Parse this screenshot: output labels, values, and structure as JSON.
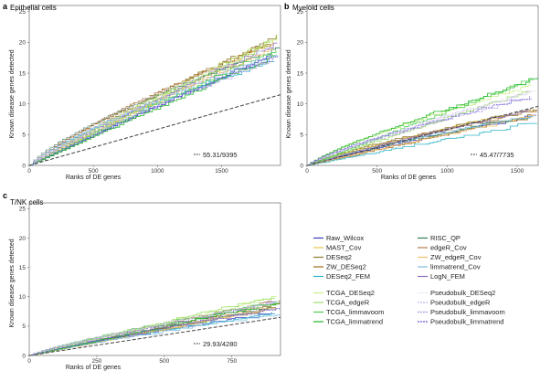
{
  "chart_data": [
    {
      "letter": "a",
      "type": "line",
      "title": "Epithelial cells",
      "xlabel": "Ranks of DE genes",
      "ylabel": "Known disease genes detected",
      "xlim": [
        0,
        1960
      ],
      "ylim": [
        0,
        26
      ],
      "xticks": [
        "0",
        "500",
        "1000",
        "1500"
      ],
      "xtick_values": [
        0,
        500,
        1000,
        1500
      ],
      "yticks": [
        "0",
        "5",
        "10",
        "15",
        "20",
        "25"
      ],
      "ytick_values": [
        0,
        5,
        10,
        15,
        20,
        25
      ],
      "annotation": "55.31/9395",
      "expected_end": 11.5
    },
    {
      "letter": "b",
      "type": "line",
      "title": "Myeloid cells",
      "xlabel": "Ranks of DE genes",
      "ylabel": "Known disease genes detected",
      "xlim": [
        0,
        1650
      ],
      "ylim": [
        0,
        26
      ],
      "xticks": [
        "0",
        "500",
        "1000",
        "1500"
      ],
      "xtick_values": [
        0,
        500,
        1000,
        1500
      ],
      "yticks": [
        "0",
        "5",
        "10",
        "15",
        "20",
        "25"
      ],
      "ytick_values": [
        0,
        5,
        10,
        15,
        20,
        25
      ],
      "annotation": "45.47/7735",
      "expected_end": 9.6
    },
    {
      "letter": "c",
      "type": "line",
      "title": "T/NK cells",
      "xlabel": "Ranks of DE genes",
      "ylabel": "Known disease genes detected",
      "xlim": [
        0,
        930
      ],
      "ylim": [
        0,
        26
      ],
      "xticks": [
        "0",
        "250",
        "500",
        "750"
      ],
      "xtick_values": [
        0,
        250,
        500,
        750
      ],
      "yticks": [
        "0",
        "5",
        "10",
        "15",
        "20",
        "25"
      ],
      "ytick_values": [
        0,
        5,
        10,
        15,
        20,
        25
      ],
      "annotation": "29.93/4280",
      "expected_end": 6.5
    }
  ],
  "methods": [
    {
      "name": "Raw_Wilcox",
      "color": "#3b3bbf",
      "dash": "",
      "end": [
        18,
        8,
        7
      ]
    },
    {
      "name": "MAST_Cov",
      "color": "#e8c84a",
      "dash": "",
      "end": [
        20,
        9,
        8
      ]
    },
    {
      "name": "DESeq2",
      "color": "#8a7a2a",
      "dash": "",
      "end": [
        21,
        9,
        9
      ]
    },
    {
      "name": "ZW_DESeq2",
      "color": "#a06c1c",
      "dash": "",
      "end": [
        20,
        8,
        8
      ]
    },
    {
      "name": "DESeq2_FEM",
      "color": "#2eb3c9",
      "dash": "",
      "end": [
        17,
        7,
        7
      ]
    },
    {
      "name": "RISC_QP",
      "color": "#2f7d4f",
      "dash": "",
      "end": [
        19,
        8,
        8
      ]
    },
    {
      "name": "edgeR_Cov",
      "color": "#b07d4a",
      "dash": "",
      "end": [
        20,
        9,
        9
      ]
    },
    {
      "name": "ZW_edgeR_Cov",
      "color": "#f0c070",
      "dash": "",
      "end": [
        19,
        8,
        8
      ]
    },
    {
      "name": "limmatrend_Cov",
      "color": "#7fbfdf",
      "dash": "",
      "end": [
        18,
        8,
        7
      ]
    },
    {
      "name": "LogN_FEM",
      "color": "#8a6bbf",
      "dash": "",
      "end": [
        20,
        9,
        9
      ]
    },
    {
      "name": "TCGA_DESeq2",
      "color": "#c9ef8a",
      "dash": "",
      "end": [
        21,
        13,
        10
      ]
    },
    {
      "name": "TCGA_edgeR",
      "color": "#9ee06a",
      "dash": "",
      "end": [
        20,
        12,
        10
      ]
    },
    {
      "name": "TCGA_limmavoom",
      "color": "#4ccf4c",
      "dash": "",
      "end": [
        19,
        14,
        9
      ]
    },
    {
      "name": "TCGA_limmatrend",
      "color": "#22b82a",
      "dash": "",
      "end": [
        18,
        14,
        9
      ]
    },
    {
      "name": "Pseudobulk_DESeq2",
      "color": "#e8e0f4",
      "dash": "2,1",
      "end": [
        19,
        12,
        9
      ]
    },
    {
      "name": "Pseudobulk_edgeR",
      "color": "#c8b8ea",
      "dash": "2,1",
      "end": [
        18,
        12,
        9
      ]
    },
    {
      "name": "Pseudobulk_limmavoom",
      "color": "#a79ae0",
      "dash": "2,1",
      "end": [
        17,
        11,
        8
      ]
    },
    {
      "name": "Pseudobulk_limmatrend",
      "color": "#6a5ad6",
      "dash": "2,1",
      "end": [
        18,
        11,
        8
      ]
    }
  ]
}
